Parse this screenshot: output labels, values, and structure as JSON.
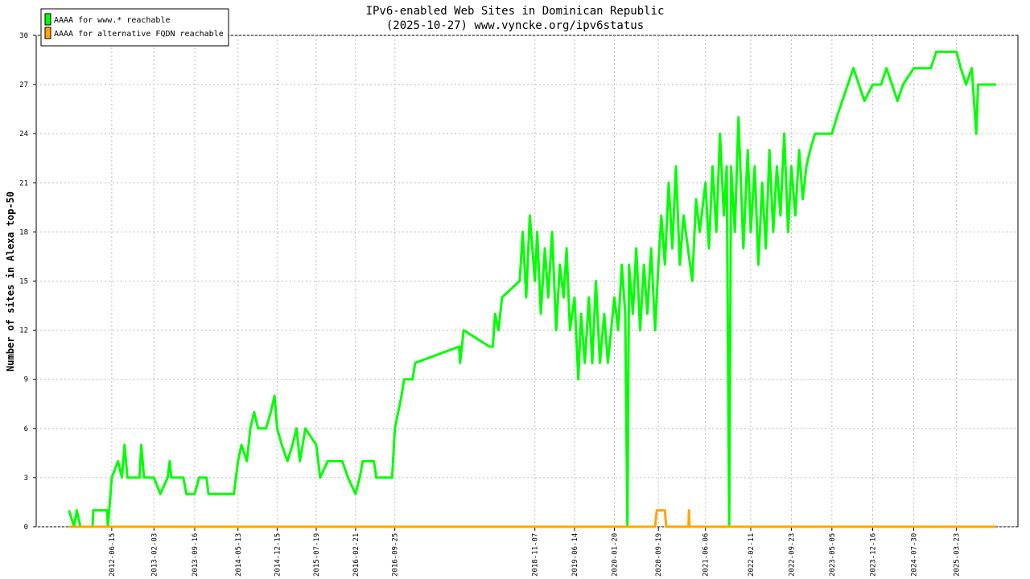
{
  "chart_data": {
    "type": "line",
    "title": "IPv6-enabled Web Sites in Dominican Republic",
    "subtitle": "(2025-10-27) www.vyncke.org/ipv6status",
    "y_label": "Number of sites in Alexa top-50",
    "xlim": [
      "2011-04-25",
      "2026-02-25"
    ],
    "xticks": [
      "2012-06-15",
      "2013-02-03",
      "2013-09-16",
      "2014-05-13",
      "2014-12-15",
      "2015-07-19",
      "2016-02-21",
      "2016-09-25",
      "2018-11-07",
      "2019-06-14",
      "2020-01-20",
      "2020-09-19",
      "2021-06-06",
      "2022-02-11",
      "2022-09-23",
      "2023-05-05",
      "2023-12-16",
      "2024-07-30",
      "2025-03-23"
    ],
    "ylim": [
      0,
      30
    ],
    "yticks": [
      0,
      3,
      6,
      9,
      12,
      15,
      18,
      21,
      24,
      27,
      30
    ],
    "grid": true,
    "legend": "upper-left",
    "series": [
      {
        "name": "AAAA for www.* reachable",
        "color": "#00ff00",
        "x": [
          "2011-10-23",
          "2011-11-20",
          "2011-12-05",
          "2011-12-25",
          "2012-03-01",
          "2012-03-05",
          "2012-05-20",
          "2012-05-25",
          "2012-06-15",
          "2012-07-20",
          "2012-08-10",
          "2012-08-25",
          "2012-09-10",
          "2012-11-15",
          "2012-11-25",
          "2012-12-10",
          "2013-02-03",
          "2013-03-10",
          "2013-04-20",
          "2013-05-01",
          "2013-05-10",
          "2013-07-15",
          "2013-08-01",
          "2013-09-16",
          "2013-10-10",
          "2013-11-20",
          "2013-12-01",
          "2014-04-20",
          "2014-05-13",
          "2014-06-01",
          "2014-07-01",
          "2014-07-20",
          "2014-08-10",
          "2014-09-01",
          "2014-10-15",
          "2014-11-10",
          "2014-12-01",
          "2014-12-15",
          "2015-01-10",
          "2015-02-10",
          "2015-03-10",
          "2015-04-01",
          "2015-04-20",
          "2015-05-20",
          "2015-07-19",
          "2015-08-10",
          "2015-09-20",
          "2015-12-10",
          "2016-01-10",
          "2016-02-21",
          "2016-03-15",
          "2016-04-01",
          "2016-06-01",
          "2016-06-15",
          "2016-09-10",
          "2016-09-25",
          "2016-11-01",
          "2016-11-15",
          "2017-01-01",
          "2017-01-15",
          "2017-09-15",
          "2017-09-20",
          "2017-10-10",
          "2018-03-01",
          "2018-03-20",
          "2018-04-01",
          "2018-04-20",
          "2018-05-10",
          "2018-08-15",
          "2018-09-01",
          "2018-09-20",
          "2018-10-10",
          "2018-11-07",
          "2018-11-20",
          "2018-12-10",
          "2019-01-01",
          "2019-01-20",
          "2019-02-10",
          "2019-03-05",
          "2019-03-25",
          "2019-04-15",
          "2019-05-01",
          "2019-05-20",
          "2019-06-14",
          "2019-07-05",
          "2019-07-20",
          "2019-08-10",
          "2019-09-01",
          "2019-09-20",
          "2019-10-10",
          "2019-11-01",
          "2019-11-25",
          "2019-12-15",
          "2020-01-20",
          "2020-02-10",
          "2020-03-01",
          "2020-03-20",
          "2020-04-01",
          "2020-04-10",
          "2020-05-01",
          "2020-05-20",
          "2020-06-10",
          "2020-07-01",
          "2020-07-20",
          "2020-08-10",
          "2020-09-01",
          "2020-09-19",
          "2020-10-05",
          "2020-10-25",
          "2020-11-15",
          "2020-12-05",
          "2020-12-25",
          "2021-01-15",
          "2021-02-05",
          "2021-03-01",
          "2021-03-25",
          "2021-04-15",
          "2021-05-05",
          "2021-06-06",
          "2021-06-25",
          "2021-07-15",
          "2021-08-05",
          "2021-08-25",
          "2021-09-15",
          "2021-10-01",
          "2021-10-15",
          "2021-10-25",
          "2021-11-15",
          "2021-12-05",
          "2022-01-01",
          "2022-01-25",
          "2022-02-11",
          "2022-03-05",
          "2022-03-25",
          "2022-04-15",
          "2022-05-05",
          "2022-05-25",
          "2022-06-15",
          "2022-07-05",
          "2022-07-25",
          "2022-08-15",
          "2022-09-05",
          "2022-09-23",
          "2022-10-15",
          "2022-11-05",
          "2022-11-25",
          "2022-12-15",
          "2023-01-05",
          "2023-02-01",
          "2023-05-05",
          "2023-06-01",
          "2023-07-01",
          "2023-08-01",
          "2023-09-01",
          "2023-10-01",
          "2023-11-01",
          "2023-12-16",
          "2024-02-01",
          "2024-03-01",
          "2024-04-01",
          "2024-05-01",
          "2024-06-01",
          "2024-07-30",
          "2024-11-01",
          "2024-12-01",
          "2025-03-23",
          "2025-04-15",
          "2025-05-15",
          "2025-06-15",
          "2025-07-10",
          "2025-07-20",
          "2025-10-27"
        ],
        "values": [
          1,
          0,
          1,
          0,
          0,
          1,
          1,
          0,
          3,
          4,
          3,
          5,
          3,
          3,
          5,
          3,
          3,
          2,
          3,
          4,
          3,
          3,
          2,
          2,
          3,
          3,
          2,
          2,
          4,
          5,
          4,
          6,
          7,
          6,
          6,
          7,
          8,
          6,
          5,
          4,
          5,
          6,
          4,
          6,
          5,
          3,
          4,
          4,
          3,
          2,
          3,
          4,
          4,
          3,
          3,
          6,
          8,
          9,
          9,
          10,
          11,
          10,
          12,
          11,
          11,
          13,
          12,
          14,
          15,
          18,
          14,
          19,
          15,
          18,
          13,
          17,
          14,
          18,
          12,
          16,
          14,
          17,
          12,
          14,
          9,
          13,
          10,
          14,
          10,
          15,
          10,
          13,
          10,
          14,
          12,
          16,
          13,
          0,
          16,
          13,
          17,
          12,
          16,
          13,
          17,
          12,
          16,
          19,
          16,
          21,
          17,
          22,
          16,
          19,
          17,
          15,
          20,
          18,
          21,
          17,
          22,
          18,
          24,
          19,
          22,
          0,
          22,
          18,
          25,
          17,
          23,
          18,
          22,
          16,
          21,
          17,
          23,
          18,
          22,
          19,
          24,
          18,
          22,
          19,
          23,
          20,
          22,
          23,
          24,
          24,
          25,
          26,
          27,
          28,
          27,
          26,
          27,
          27,
          28,
          27,
          26,
          27,
          28,
          28,
          29,
          29,
          28,
          27,
          28,
          24,
          27,
          27
        ]
      },
      {
        "name": "AAAA for alternative FQDN reachable",
        "color": "#ffa500",
        "x": [
          "2011-10-23",
          "2020-09-01",
          "2020-09-10",
          "2020-10-25",
          "2020-11-01",
          "2021-03-04",
          "2021-03-07",
          "2021-03-10",
          "2025-10-27"
        ],
        "values": [
          0,
          0,
          1,
          1,
          0,
          0,
          1,
          0,
          0
        ]
      }
    ]
  }
}
